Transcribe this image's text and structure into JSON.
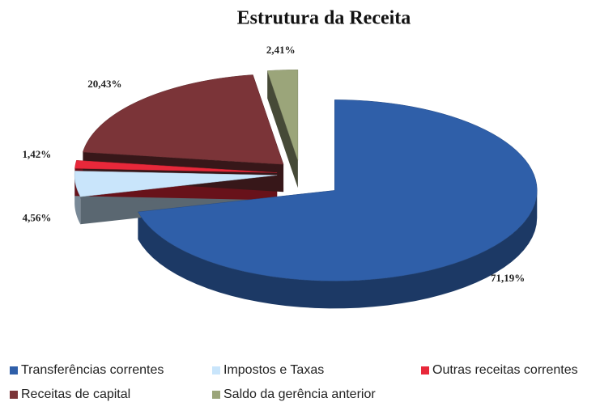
{
  "chart_data": {
    "type": "pie",
    "title": "Estrutura da Receita",
    "categories": [
      "Transferências correntes",
      "Impostos e Taxas",
      "Outras receitas correntes",
      "Receitas de capital",
      "Saldo da gerência anterior"
    ],
    "values": [
      71.19,
      4.56,
      1.42,
      20.43,
      2.41
    ],
    "value_labels": [
      "71,19%",
      "4,56%",
      "1,42%",
      "20,43%",
      "2,41%"
    ],
    "colors": [
      "#2f5fa9",
      "#c9e5fb",
      "#e8283a",
      "#7b3438",
      "#9ba57a"
    ]
  }
}
